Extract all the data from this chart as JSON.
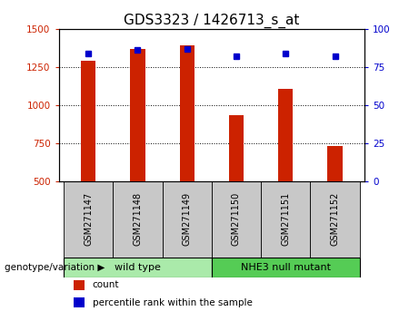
{
  "title": "GDS3323 / 1426713_s_at",
  "samples": [
    "GSM271147",
    "GSM271148",
    "GSM271149",
    "GSM271150",
    "GSM271151",
    "GSM271152"
  ],
  "counts": [
    1290,
    1370,
    1390,
    935,
    1105,
    730
  ],
  "percentiles": [
    84,
    86,
    87,
    82,
    84,
    82
  ],
  "ylim_left": [
    500,
    1500
  ],
  "ylim_right": [
    0,
    100
  ],
  "yticks_left": [
    500,
    750,
    1000,
    1250,
    1500
  ],
  "yticks_right": [
    0,
    25,
    50,
    75,
    100
  ],
  "bar_color": "#cc2200",
  "dot_color": "#0000cc",
  "groups": [
    {
      "label": "wild type",
      "indices": [
        0,
        1,
        2
      ],
      "color": "#aaeaaa"
    },
    {
      "label": "NHE3 null mutant",
      "indices": [
        3,
        4,
        5
      ],
      "color": "#55cc55"
    }
  ],
  "group_label_prefix": "genotype/variation ▶",
  "tick_label_area_color": "#c8c8c8",
  "legend_items": [
    {
      "color": "#cc2200",
      "label": "count"
    },
    {
      "color": "#0000cc",
      "label": "percentile rank within the sample"
    }
  ],
  "title_fontsize": 11,
  "tick_fontsize": 7.5,
  "bar_bottom": 500,
  "bar_width": 0.3
}
